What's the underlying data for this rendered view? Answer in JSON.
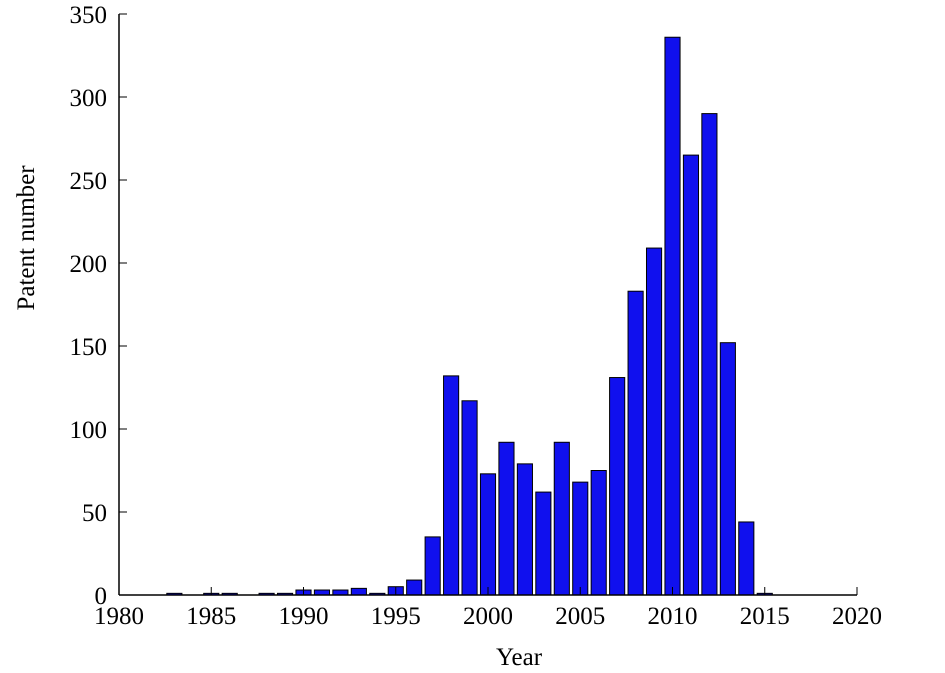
{
  "chart_data": {
    "type": "bar",
    "title": "",
    "xlabel": "Year",
    "ylabel": "Patent number",
    "xlim": [
      1980,
      2020
    ],
    "ylim": [
      0,
      350
    ],
    "xticks": [
      1980,
      1985,
      1990,
      1995,
      2000,
      2005,
      2010,
      2015,
      2020
    ],
    "yticks": [
      0,
      50,
      100,
      150,
      200,
      250,
      300,
      350
    ],
    "grid": false,
    "bar_color": "#1010ee",
    "bar_edge_color": "#000000",
    "x": [
      1983,
      1985,
      1986,
      1988,
      1989,
      1990,
      1991,
      1992,
      1993,
      1994,
      1995,
      1996,
      1997,
      1998,
      1999,
      2000,
      2001,
      2002,
      2003,
      2004,
      2005,
      2006,
      2007,
      2008,
      2009,
      2010,
      2011,
      2012,
      2013,
      2014,
      2015
    ],
    "values": [
      1,
      1,
      1,
      1,
      1,
      3,
      3,
      3,
      4,
      1,
      5,
      9,
      35,
      132,
      117,
      73,
      92,
      79,
      62,
      92,
      68,
      75,
      131,
      183,
      209,
      336,
      265,
      290,
      152,
      44,
      1
    ]
  }
}
